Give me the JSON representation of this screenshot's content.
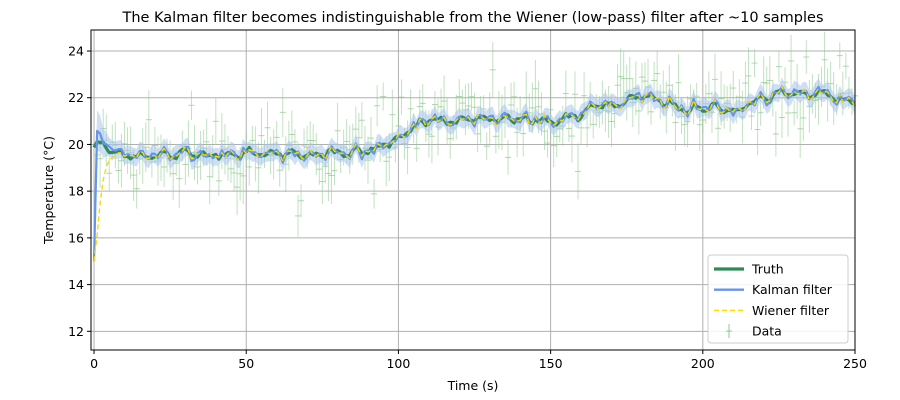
{
  "chart_data": {
    "type": "line",
    "title": "The Kalman filter becomes indistinguishable from the Wiener (low-pass) filter after ~10 samples",
    "xlabel": "Time (s)",
    "ylabel": "Temperature (°C)",
    "xlim": [
      -1,
      250
    ],
    "ylim": [
      11.2,
      24.9
    ],
    "xticks": [
      0,
      50,
      100,
      150,
      200,
      250
    ],
    "yticks": [
      12,
      14,
      16,
      18,
      20,
      22,
      24
    ],
    "grid": true,
    "legend_position": "lower-right",
    "legend": [
      "Truth",
      "Kalman filter",
      "Wiener filter",
      "Data"
    ],
    "colors": {
      "truth": "#2e8b57",
      "kalman": "#6495ed",
      "kalman_band": "#a9c4ee",
      "wiener": "#ffd700",
      "data": "#8fc98f",
      "grid": "#b0b0b0"
    },
    "truth_segments": [
      {
        "x": [
          0,
          2,
          5,
          8,
          10,
          20,
          30,
          40,
          50,
          60,
          70,
          80,
          90,
          95,
          100,
          105,
          110,
          120,
          130,
          140,
          145,
          150,
          155,
          160,
          165,
          170,
          175,
          180,
          185,
          190,
          195,
          200,
          205,
          210,
          215,
          220,
          225,
          230,
          235,
          240,
          245,
          250
        ],
        "y": [
          19.9,
          20.0,
          19.8,
          19.6,
          19.6,
          19.5,
          19.6,
          19.6,
          19.6,
          19.6,
          19.6,
          19.6,
          19.7,
          20.0,
          20.3,
          20.8,
          21.0,
          21.0,
          21.1,
          21.1,
          21.0,
          21.0,
          21.1,
          21.2,
          21.8,
          21.6,
          21.8,
          22.1,
          21.9,
          21.7,
          21.5,
          21.5,
          21.6,
          21.4,
          21.8,
          22.0,
          22.1,
          22.3,
          22.1,
          22.2,
          21.9,
          21.8
        ]
      }
    ],
    "wiener_anchor": {
      "x": [
        0,
        1,
        2,
        3,
        4,
        5,
        6,
        8,
        10,
        12,
        15,
        20
      ],
      "y": [
        15.0,
        15.9,
        17.2,
        18.2,
        18.8,
        19.2,
        19.4,
        19.5,
        19.6,
        19.6,
        19.6,
        19.5
      ]
    },
    "kalman_anchor": {
      "x": [
        0,
        0.5,
        1,
        2,
        3,
        4,
        6,
        8,
        10,
        15,
        20
      ],
      "y": [
        15.0,
        19.6,
        20.6,
        20.5,
        20.1,
        20.0,
        19.9,
        19.8,
        19.7,
        19.6,
        19.5
      ]
    },
    "data_summary": {
      "x_range": [
        0,
        250
      ],
      "count": 250,
      "typical_error": 0.9,
      "noise": 0.75
    }
  }
}
